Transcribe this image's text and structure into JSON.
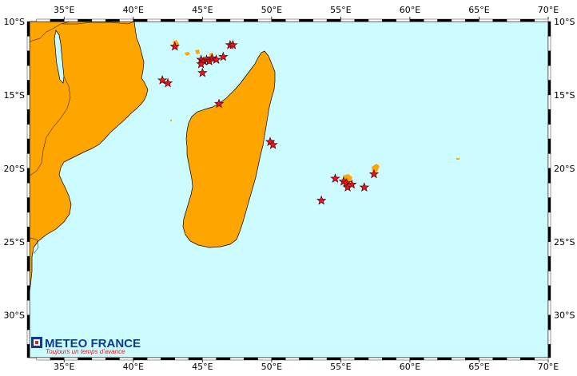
{
  "map": {
    "colors": {
      "ocean": "#ccfcff",
      "land": "#ffa500",
      "coast": "#000000",
      "frame_dark": "#000000",
      "frame_light": "#ffffff",
      "marker_fill": "#e8141e",
      "marker_stroke": "#5a0000"
    },
    "extent": {
      "lon": [
        32.5,
        70
      ],
      "lat": [
        -32.9,
        -10
      ]
    },
    "lon_ticks": [
      {
        "value": 35,
        "label": "35°E"
      },
      {
        "value": 40,
        "label": "40°E"
      },
      {
        "value": 45,
        "label": "45°E"
      },
      {
        "value": 50,
        "label": "50°E"
      },
      {
        "value": 55,
        "label": "55°E"
      },
      {
        "value": 60,
        "label": "60°E"
      },
      {
        "value": 65,
        "label": "65°E"
      },
      {
        "value": 70,
        "label": "70°E"
      }
    ],
    "lat_ticks": [
      {
        "value": -10,
        "label": "10°S"
      },
      {
        "value": -15,
        "label": "15°S"
      },
      {
        "value": -20,
        "label": "20°S"
      },
      {
        "value": -25,
        "label": "25°S"
      },
      {
        "value": -30,
        "label": "30°S"
      }
    ],
    "stations": [
      {
        "lon": 43.0,
        "lat": -11.7
      },
      {
        "lon": 44.9,
        "lat": -12.6
      },
      {
        "lon": 45.1,
        "lat": -12.7
      },
      {
        "lon": 45.3,
        "lat": -12.6
      },
      {
        "lon": 45.5,
        "lat": -12.7
      },
      {
        "lon": 45.7,
        "lat": -12.5
      },
      {
        "lon": 46.0,
        "lat": -12.6
      },
      {
        "lon": 44.9,
        "lat": -12.9
      },
      {
        "lon": 46.5,
        "lat": -12.4
      },
      {
        "lon": 45.0,
        "lat": -13.5
      },
      {
        "lon": 47.0,
        "lat": -11.6
      },
      {
        "lon": 47.2,
        "lat": -11.6
      },
      {
        "lon": 42.1,
        "lat": -14.0
      },
      {
        "lon": 42.5,
        "lat": -14.2
      },
      {
        "lon": 46.2,
        "lat": -15.6
      },
      {
        "lon": 49.9,
        "lat": -18.2
      },
      {
        "lon": 50.1,
        "lat": -18.4
      },
      {
        "lon": 53.6,
        "lat": -22.2
      },
      {
        "lon": 54.6,
        "lat": -20.7
      },
      {
        "lon": 55.2,
        "lat": -20.9
      },
      {
        "lon": 55.4,
        "lat": -21.0
      },
      {
        "lon": 55.5,
        "lat": -21.3
      },
      {
        "lon": 55.8,
        "lat": -21.1
      },
      {
        "lon": 56.7,
        "lat": -21.3
      },
      {
        "lon": 57.4,
        "lat": -20.4
      }
    ],
    "logo": {
      "title": "METEO FRANCE",
      "tagline": "Toujours un temps d'avance"
    }
  }
}
